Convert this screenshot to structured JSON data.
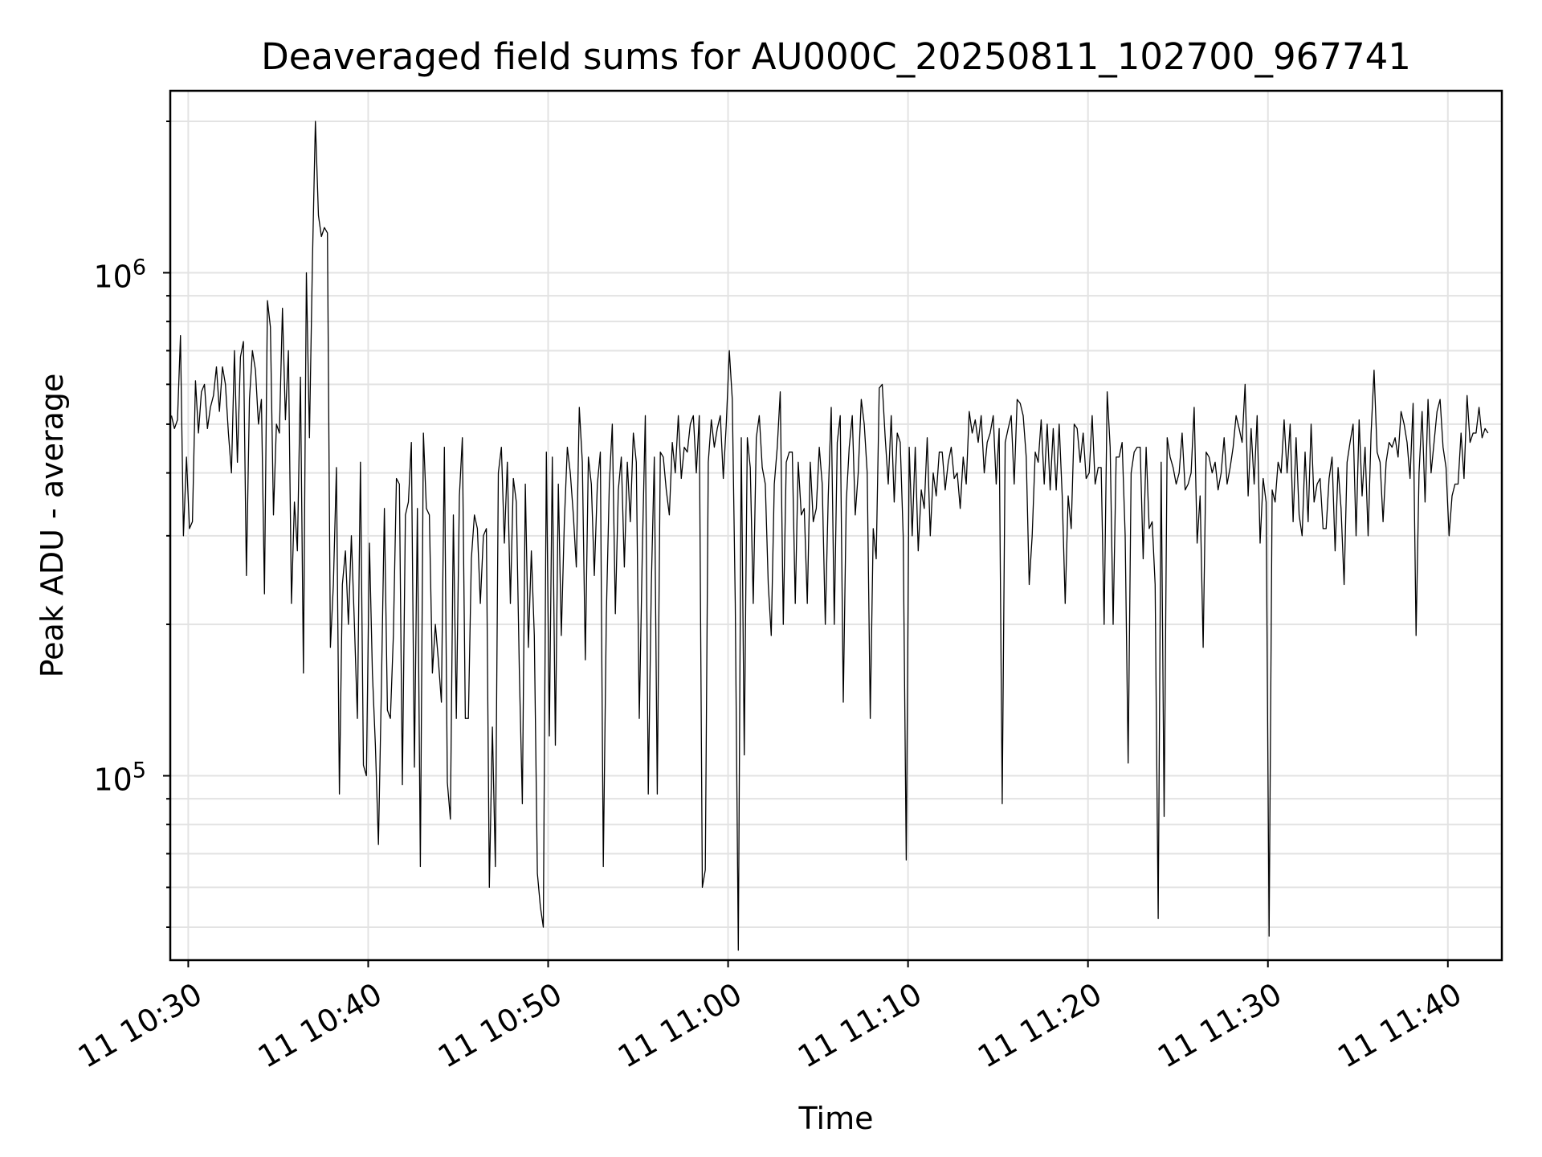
{
  "chart_data": {
    "type": "line",
    "title": "Deaveraged field sums for AU000C_20250811_102700_967741",
    "xlabel": "Time",
    "ylabel": "Peak ADU - average",
    "yscale": "log",
    "grid": true,
    "x_range": [
      "2025-08-11 10:29:00",
      "2025-08-11 11:43:00"
    ],
    "ylim": [
      43000,
      2300000
    ],
    "x_ticks": [
      "11 10:30",
      "11 10:40",
      "11 10:50",
      "11 11:00",
      "11 11:10",
      "11 11:20",
      "11 11:30",
      "11 11:40"
    ],
    "y_ticks": [
      {
        "value": 100000,
        "base": "10",
        "exp": "5"
      },
      {
        "value": 1000000,
        "base": "10",
        "exp": "6"
      }
    ],
    "series": [
      {
        "color": "#000000",
        "start_time": "2025-08-11 10:29:04",
        "interval_seconds": 10,
        "values": [
          520000,
          490000,
          510000,
          750000,
          300000,
          430000,
          310000,
          320000,
          610000,
          480000,
          580000,
          600000,
          490000,
          540000,
          570000,
          650000,
          530000,
          650000,
          600000,
          480000,
          400000,
          700000,
          420000,
          680000,
          730000,
          250000,
          560000,
          700000,
          640000,
          500000,
          560000,
          230000,
          880000,
          780000,
          330000,
          500000,
          480000,
          850000,
          510000,
          700000,
          220000,
          350000,
          280000,
          620000,
          160000,
          1000000,
          470000,
          1050000,
          2000000,
          1300000,
          1180000,
          1230000,
          1200000,
          180000,
          240000,
          410000,
          92000,
          240000,
          280000,
          200000,
          300000,
          200000,
          130000,
          420000,
          105000,
          100000,
          290000,
          160000,
          115000,
          73000,
          150000,
          340000,
          135000,
          130000,
          190000,
          390000,
          380000,
          96000,
          330000,
          350000,
          460000,
          104000,
          340000,
          66000,
          480000,
          340000,
          330000,
          160000,
          200000,
          170000,
          140000,
          450000,
          97000,
          82000,
          330000,
          130000,
          360000,
          470000,
          130000,
          130000,
          270000,
          330000,
          310000,
          220000,
          300000,
          310000,
          60000,
          125000,
          66000,
          400000,
          450000,
          290000,
          420000,
          220000,
          390000,
          350000,
          160000,
          88000,
          380000,
          180000,
          280000,
          190000,
          64000,
          55000,
          50000,
          440000,
          120000,
          430000,
          115000,
          380000,
          190000,
          320000,
          450000,
          400000,
          330000,
          260000,
          540000,
          420000,
          170000,
          430000,
          380000,
          250000,
          380000,
          440000,
          66000,
          210000,
          380000,
          500000,
          210000,
          370000,
          430000,
          260000,
          420000,
          320000,
          480000,
          420000,
          130000,
          280000,
          520000,
          92000,
          240000,
          430000,
          92000,
          440000,
          430000,
          370000,
          330000,
          460000,
          400000,
          520000,
          390000,
          450000,
          440000,
          500000,
          520000,
          400000,
          520000,
          60000,
          65000,
          420000,
          510000,
          450000,
          490000,
          520000,
          390000,
          500000,
          700000,
          560000,
          220000,
          45000,
          470000,
          110000,
          470000,
          410000,
          220000,
          470000,
          520000,
          410000,
          380000,
          240000,
          190000,
          380000,
          450000,
          580000,
          200000,
          420000,
          440000,
          440000,
          220000,
          420000,
          330000,
          340000,
          220000,
          420000,
          320000,
          340000,
          450000,
          380000,
          200000,
          360000,
          540000,
          200000,
          460000,
          520000,
          140000,
          350000,
          450000,
          520000,
          330000,
          400000,
          560000,
          500000,
          400000,
          130000,
          310000,
          270000,
          590000,
          600000,
          470000,
          380000,
          520000,
          350000,
          480000,
          460000,
          300000,
          68000,
          450000,
          300000,
          450000,
          280000,
          370000,
          340000,
          470000,
          300000,
          400000,
          360000,
          440000,
          440000,
          370000,
          420000,
          450000,
          390000,
          400000,
          340000,
          430000,
          380000,
          530000,
          480000,
          510000,
          460000,
          520000,
          400000,
          460000,
          480000,
          520000,
          380000,
          490000,
          88000,
          460000,
          490000,
          520000,
          380000,
          560000,
          550000,
          520000,
          430000,
          240000,
          300000,
          440000,
          420000,
          510000,
          380000,
          500000,
          370000,
          490000,
          370000,
          500000,
          360000,
          220000,
          360000,
          310000,
          500000,
          490000,
          420000,
          480000,
          390000,
          400000,
          520000,
          380000,
          410000,
          410000,
          200000,
          580000,
          450000,
          200000,
          430000,
          430000,
          460000,
          300000,
          106000,
          400000,
          440000,
          450000,
          450000,
          270000,
          450000,
          310000,
          320000,
          240000,
          52000,
          420000,
          83000,
          470000,
          430000,
          410000,
          380000,
          400000,
          480000,
          370000,
          380000,
          400000,
          540000,
          290000,
          360000,
          180000,
          440000,
          430000,
          400000,
          420000,
          370000,
          400000,
          470000,
          380000,
          410000,
          450000,
          520000,
          490000,
          460000,
          600000,
          360000,
          490000,
          380000,
          520000,
          290000,
          390000,
          350000,
          48000,
          370000,
          350000,
          420000,
          400000,
          510000,
          400000,
          500000,
          320000,
          470000,
          330000,
          300000,
          440000,
          320000,
          500000,
          350000,
          380000,
          390000,
          310000,
          310000,
          390000,
          430000,
          280000,
          410000,
          340000,
          240000,
          420000,
          460000,
          500000,
          300000,
          510000,
          360000,
          450000,
          300000,
          480000,
          640000,
          440000,
          420000,
          320000,
          420000,
          460000,
          450000,
          470000,
          430000,
          530000,
          500000,
          460000,
          390000,
          550000,
          190000,
          400000,
          530000,
          350000,
          560000,
          400000,
          460000,
          530000,
          560000,
          450000,
          410000,
          300000,
          360000,
          380000,
          380000,
          480000,
          390000,
          570000,
          460000,
          480000,
          480000,
          540000,
          470000,
          490000,
          480000
        ]
      }
    ]
  }
}
